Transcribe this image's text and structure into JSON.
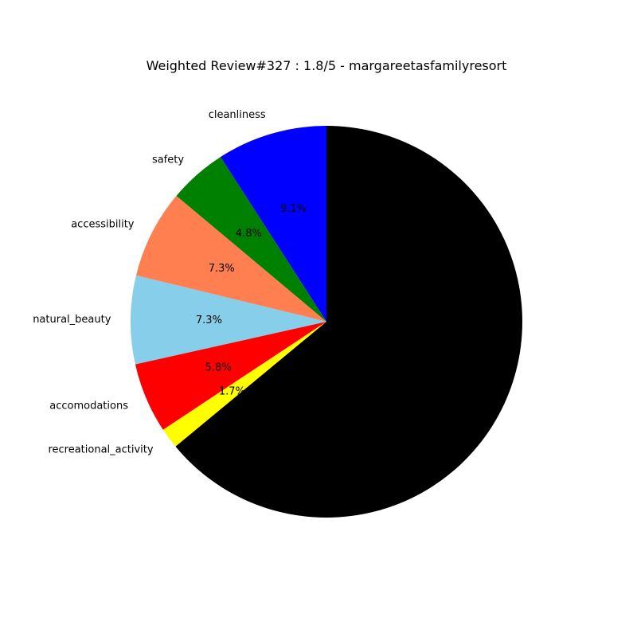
{
  "chart_data": {
    "type": "pie",
    "title": "Weighted Review#327 : 1.8/5 - margareetasfamilyresort",
    "start_angle_deg": 90,
    "direction": "counterclockwise",
    "slices": [
      {
        "label": "cleanliness",
        "value": 9.1,
        "pct_text": "9.1%",
        "color": "#0000ff"
      },
      {
        "label": "safety",
        "value": 4.8,
        "pct_text": "4.8%",
        "color": "#008000"
      },
      {
        "label": "accessibility",
        "value": 7.3,
        "pct_text": "7.3%",
        "color": "#ff7f50"
      },
      {
        "label": "natural_beauty",
        "value": 7.3,
        "pct_text": "7.3%",
        "color": "#87ceeb"
      },
      {
        "label": "accomodations",
        "value": 5.8,
        "pct_text": "5.8%",
        "color": "#ff0000"
      },
      {
        "label": "recreational_activity",
        "value": 1.7,
        "pct_text": "1.7%",
        "color": "#ffff00"
      },
      {
        "label": "",
        "value": 64.0,
        "pct_text": "",
        "color": "#000000"
      }
    ]
  }
}
